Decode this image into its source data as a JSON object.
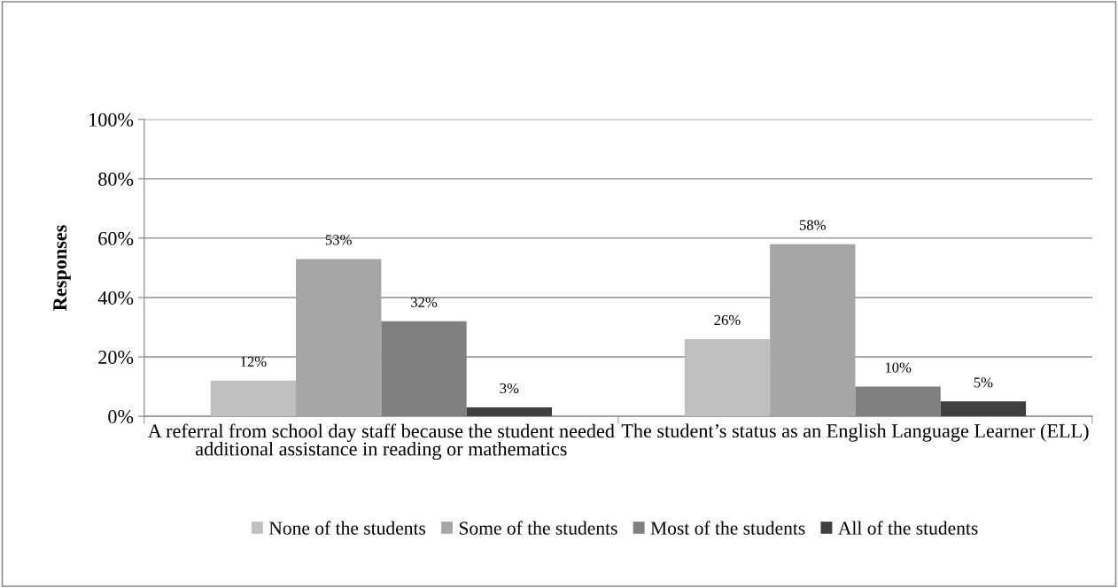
{
  "chart_data": {
    "type": "bar",
    "categories": [
      "A referral from school day staff because the student needed additional assistance in reading or mathematics",
      "The student’s status as an English Language Learner (ELL)"
    ],
    "series": [
      {
        "name": "None of the students",
        "color": "#bfbfbf",
        "values": [
          12,
          26
        ],
        "value_labels": [
          "12%",
          "26%"
        ]
      },
      {
        "name": "Some of the students",
        "color": "#a6a6a6",
        "values": [
          53,
          58
        ],
        "value_labels": [
          "53%",
          "58%"
        ]
      },
      {
        "name": "Most of the students",
        "color": "#808080",
        "values": [
          32,
          10
        ],
        "value_labels": [
          "32%",
          "10%"
        ]
      },
      {
        "name": "All of the students",
        "color": "#404040",
        "values": [
          3,
          5
        ],
        "value_labels": [
          "3%",
          "5%"
        ]
      }
    ],
    "ylabel": "Responses",
    "ylim": [
      0,
      100
    ],
    "yticks": [
      {
        "value": 0,
        "label": "0%"
      },
      {
        "value": 20,
        "label": "20%"
      },
      {
        "value": 40,
        "label": "40%"
      },
      {
        "value": 60,
        "label": "60%"
      },
      {
        "value": 80,
        "label": "80%"
      },
      {
        "value": 100,
        "label": "100%"
      }
    ],
    "grid": "y",
    "legend": "bottom"
  }
}
